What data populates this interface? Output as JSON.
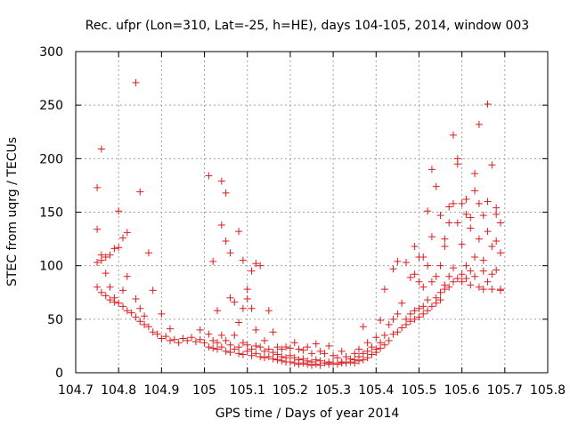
{
  "chart_data": {
    "type": "scatter",
    "title": "Rec. ufpr (Lon=310, Lat=-25, h=HE), days 104-105, 2014, window 003",
    "xlabel": "GPS time / Days of year 2014",
    "ylabel": "STEC from uqrg / TECUs",
    "xlim": [
      104.7,
      105.8
    ],
    "ylim": [
      0,
      300
    ],
    "xticks": [
      "104.7",
      "104.8",
      "104.9",
      "105",
      "105.1",
      "105.2",
      "105.3",
      "105.4",
      "105.5",
      "105.6",
      "105.7",
      "105.8"
    ],
    "xtick_values": [
      104.7,
      104.8,
      104.9,
      105.0,
      105.1,
      105.2,
      105.3,
      105.4,
      105.5,
      105.6,
      105.7,
      105.8
    ],
    "yticks": [
      "0",
      "50",
      "100",
      "150",
      "200",
      "250",
      "300"
    ],
    "ytick_values": [
      0,
      50,
      100,
      150,
      200,
      250,
      300
    ],
    "grid": true,
    "marker": "+",
    "color": "#e31a1c",
    "series": [
      {
        "points": [
          [
            104.75,
            173
          ],
          [
            104.75,
            134
          ],
          [
            104.75,
            103
          ],
          [
            104.75,
            80
          ],
          [
            104.76,
            209
          ],
          [
            104.76,
            110
          ],
          [
            104.76,
            105
          ],
          [
            104.76,
            75
          ],
          [
            104.77,
            108
          ],
          [
            104.77,
            93
          ],
          [
            104.77,
            72
          ],
          [
            104.78,
            110
          ],
          [
            104.78,
            80
          ],
          [
            104.78,
            68
          ],
          [
            104.79,
            116
          ],
          [
            104.79,
            70
          ],
          [
            104.79,
            66
          ],
          [
            104.8,
            151
          ],
          [
            104.8,
            117
          ],
          [
            104.8,
            65
          ],
          [
            104.81,
            126
          ],
          [
            104.81,
            77
          ],
          [
            104.81,
            62
          ],
          [
            104.82,
            131
          ],
          [
            104.82,
            90
          ],
          [
            104.82,
            58
          ],
          [
            104.83,
            56
          ],
          [
            104.84,
            271
          ],
          [
            104.84,
            69
          ],
          [
            104.84,
            52
          ],
          [
            104.85,
            169
          ],
          [
            104.85,
            60
          ],
          [
            104.85,
            48
          ],
          [
            104.86,
            53
          ],
          [
            104.86,
            45
          ],
          [
            104.87,
            112
          ],
          [
            104.87,
            43
          ],
          [
            104.88,
            77
          ],
          [
            104.88,
            38
          ],
          [
            104.89,
            36
          ],
          [
            104.9,
            55
          ],
          [
            104.9,
            32
          ],
          [
            104.91,
            34
          ],
          [
            104.92,
            41
          ],
          [
            104.92,
            30
          ],
          [
            104.93,
            31
          ],
          [
            104.94,
            28
          ],
          [
            104.95,
            32
          ],
          [
            104.96,
            30
          ],
          [
            104.97,
            33
          ],
          [
            104.98,
            29
          ],
          [
            104.99,
            40
          ],
          [
            104.99,
            31
          ],
          [
            105.0,
            28
          ],
          [
            105.01,
            184
          ],
          [
            105.01,
            36
          ],
          [
            105.01,
            24
          ],
          [
            105.02,
            104
          ],
          [
            105.02,
            30
          ],
          [
            105.02,
            23
          ],
          [
            105.03,
            58
          ],
          [
            105.03,
            28
          ],
          [
            105.03,
            22
          ],
          [
            105.04,
            179
          ],
          [
            105.04,
            138
          ],
          [
            105.04,
            35
          ],
          [
            105.04,
            24
          ],
          [
            105.05,
            168
          ],
          [
            105.05,
            123
          ],
          [
            105.05,
            30
          ],
          [
            105.05,
            20
          ],
          [
            105.06,
            112
          ],
          [
            105.06,
            70
          ],
          [
            105.06,
            26
          ],
          [
            105.06,
            19
          ],
          [
            105.07,
            66
          ],
          [
            105.07,
            35
          ],
          [
            105.07,
            22
          ],
          [
            105.08,
            132
          ],
          [
            105.08,
            47
          ],
          [
            105.08,
            24
          ],
          [
            105.08,
            18
          ],
          [
            105.09,
            105
          ],
          [
            105.09,
            60
          ],
          [
            105.09,
            28
          ],
          [
            105.09,
            17
          ],
          [
            105.1,
            78
          ],
          [
            105.1,
            69
          ],
          [
            105.1,
            26
          ],
          [
            105.1,
            20
          ],
          [
            105.11,
            95
          ],
          [
            105.11,
            60
          ],
          [
            105.11,
            22
          ],
          [
            105.11,
            16
          ],
          [
            105.12,
            102
          ],
          [
            105.12,
            40
          ],
          [
            105.12,
            25
          ],
          [
            105.12,
            18
          ],
          [
            105.13,
            100
          ],
          [
            105.13,
            24
          ],
          [
            105.13,
            15
          ],
          [
            105.14,
            30
          ],
          [
            105.14,
            20
          ],
          [
            105.14,
            14
          ],
          [
            105.15,
            58
          ],
          [
            105.15,
            22
          ],
          [
            105.15,
            15
          ],
          [
            105.16,
            38
          ],
          [
            105.16,
            19
          ],
          [
            105.16,
            13
          ],
          [
            105.17,
            24
          ],
          [
            105.17,
            17
          ],
          [
            105.17,
            12
          ],
          [
            105.18,
            22
          ],
          [
            105.18,
            15
          ],
          [
            105.18,
            11
          ],
          [
            105.19,
            24
          ],
          [
            105.19,
            14
          ],
          [
            105.19,
            10
          ],
          [
            105.2,
            23
          ],
          [
            105.2,
            16
          ],
          [
            105.2,
            10
          ],
          [
            105.21,
            28
          ],
          [
            105.21,
            14
          ],
          [
            105.21,
            9
          ],
          [
            105.22,
            22
          ],
          [
            105.22,
            12
          ],
          [
            105.22,
            8
          ],
          [
            105.23,
            21
          ],
          [
            105.23,
            13
          ],
          [
            105.23,
            9
          ],
          [
            105.24,
            24
          ],
          [
            105.24,
            11
          ],
          [
            105.24,
            8
          ],
          [
            105.25,
            18
          ],
          [
            105.25,
            10
          ],
          [
            105.25,
            7
          ],
          [
            105.26,
            27
          ],
          [
            105.26,
            12
          ],
          [
            105.26,
            8
          ],
          [
            105.27,
            20
          ],
          [
            105.27,
            11
          ],
          [
            105.27,
            7
          ],
          [
            105.28,
            18
          ],
          [
            105.28,
            9
          ],
          [
            105.29,
            25
          ],
          [
            105.29,
            10
          ],
          [
            105.29,
            8
          ],
          [
            105.3,
            16
          ],
          [
            105.3,
            9
          ],
          [
            105.31,
            14
          ],
          [
            105.31,
            8
          ],
          [
            105.32,
            20
          ],
          [
            105.32,
            10
          ],
          [
            105.32,
            9
          ],
          [
            105.33,
            15
          ],
          [
            105.33,
            9
          ],
          [
            105.34,
            13
          ],
          [
            105.34,
            10
          ],
          [
            105.35,
            18
          ],
          [
            105.35,
            12
          ],
          [
            105.35,
            9
          ],
          [
            105.36,
            22
          ],
          [
            105.36,
            15
          ],
          [
            105.36,
            11
          ],
          [
            105.37,
            43
          ],
          [
            105.37,
            18
          ],
          [
            105.37,
            12
          ],
          [
            105.38,
            28
          ],
          [
            105.38,
            20
          ],
          [
            105.38,
            14
          ],
          [
            105.39,
            24
          ],
          [
            105.39,
            17
          ],
          [
            105.4,
            33
          ],
          [
            105.4,
            22
          ],
          [
            105.4,
            19
          ],
          [
            105.41,
            49
          ],
          [
            105.41,
            28
          ],
          [
            105.41,
            23
          ],
          [
            105.42,
            78
          ],
          [
            105.42,
            35
          ],
          [
            105.42,
            26
          ],
          [
            105.43,
            45
          ],
          [
            105.43,
            30
          ],
          [
            105.44,
            97
          ],
          [
            105.44,
            50
          ],
          [
            105.44,
            36
          ],
          [
            105.45,
            104
          ],
          [
            105.45,
            55
          ],
          [
            105.45,
            38
          ],
          [
            105.46,
            65
          ],
          [
            105.46,
            42
          ],
          [
            105.47,
            103
          ],
          [
            105.47,
            50
          ],
          [
            105.47,
            45
          ],
          [
            105.48,
            89
          ],
          [
            105.48,
            55
          ],
          [
            105.48,
            48
          ],
          [
            105.49,
            118
          ],
          [
            105.49,
            92
          ],
          [
            105.49,
            58
          ],
          [
            105.49,
            50
          ],
          [
            105.5,
            108
          ],
          [
            105.5,
            85
          ],
          [
            105.5,
            60
          ],
          [
            105.5,
            52
          ],
          [
            105.51,
            108
          ],
          [
            105.51,
            80
          ],
          [
            105.51,
            62
          ],
          [
            105.51,
            55
          ],
          [
            105.52,
            151
          ],
          [
            105.52,
            100
          ],
          [
            105.52,
            68
          ],
          [
            105.52,
            58
          ],
          [
            105.53,
            190
          ],
          [
            105.53,
            127
          ],
          [
            105.53,
            85
          ],
          [
            105.53,
            62
          ],
          [
            105.54,
            174
          ],
          [
            105.54,
            90
          ],
          [
            105.54,
            70
          ],
          [
            105.54,
            65
          ],
          [
            105.55,
            147
          ],
          [
            105.55,
            100
          ],
          [
            105.55,
            75
          ],
          [
            105.55,
            68
          ],
          [
            105.56,
            125
          ],
          [
            105.56,
            118
          ],
          [
            105.56,
            82
          ],
          [
            105.56,
            78
          ],
          [
            105.57,
            155
          ],
          [
            105.57,
            140
          ],
          [
            105.57,
            90
          ],
          [
            105.57,
            80
          ],
          [
            105.58,
            222
          ],
          [
            105.58,
            158
          ],
          [
            105.58,
            98
          ],
          [
            105.58,
            85
          ],
          [
            105.59,
            200
          ],
          [
            105.59,
            195
          ],
          [
            105.59,
            140
          ],
          [
            105.59,
            88
          ],
          [
            105.6,
            158
          ],
          [
            105.6,
            120
          ],
          [
            105.6,
            92
          ],
          [
            105.6,
            85
          ],
          [
            105.61,
            162
          ],
          [
            105.61,
            148
          ],
          [
            105.61,
            100
          ],
          [
            105.61,
            88
          ],
          [
            105.62,
            145
          ],
          [
            105.62,
            135
          ],
          [
            105.62,
            95
          ],
          [
            105.62,
            82
          ],
          [
            105.63,
            186
          ],
          [
            105.63,
            170
          ],
          [
            105.63,
            108
          ],
          [
            105.63,
            90
          ],
          [
            105.64,
            232
          ],
          [
            105.64,
            158
          ],
          [
            105.64,
            125
          ],
          [
            105.64,
            80
          ],
          [
            105.65,
            147
          ],
          [
            105.65,
            105
          ],
          [
            105.65,
            95
          ],
          [
            105.65,
            78
          ],
          [
            105.66,
            251
          ],
          [
            105.66,
            160
          ],
          [
            105.66,
            132
          ],
          [
            105.66,
            85
          ],
          [
            105.67,
            194
          ],
          [
            105.67,
            118
          ],
          [
            105.67,
            92
          ],
          [
            105.67,
            78
          ],
          [
            105.68,
            154
          ],
          [
            105.68,
            148
          ],
          [
            105.68,
            123
          ],
          [
            105.68,
            96
          ],
          [
            105.69,
            140
          ],
          [
            105.69,
            112
          ],
          [
            105.69,
            78
          ],
          [
            105.69,
            77
          ]
        ]
      }
    ]
  }
}
